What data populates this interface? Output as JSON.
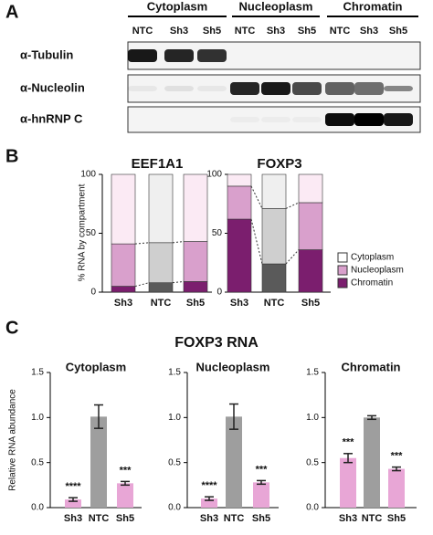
{
  "panel_a": {
    "label": "A",
    "groups": [
      "Cytoplasm",
      "Nucleoplasm",
      "Chromatin"
    ],
    "lanes": [
      "NTC",
      "Sh3",
      "Sh5",
      "NTC",
      "Sh3",
      "Sh5",
      "NTC",
      "Sh3",
      "Sh5"
    ],
    "rows": [
      "α-Tubulin",
      "α-Nucleolin",
      "α-hnRNP C"
    ]
  },
  "panel_b_label": "B",
  "panel_c_label": "C",
  "panel_c_title": "FOXP3 RNA",
  "chart_data": [
    {
      "type": "stacked_bar",
      "title": "EEF1A1",
      "y_label": "% RNA by compartment",
      "categories": [
        "Sh3",
        "NTC",
        "Sh5"
      ],
      "series": [
        {
          "color": "#7b1e6e",
          "point_colors": [
            "#7b1e6e",
            "#5a5a5a",
            "#7b1e6e"
          ],
          "values": [
            5,
            8,
            9
          ]
        },
        {
          "color": "#d9a0cc",
          "point_colors": [
            "#d9a0cc",
            "#cfcfcf",
            "#d9a0cc"
          ],
          "values": [
            36,
            34,
            34
          ]
        },
        {
          "color": "#fbeaf4",
          "point_colors": [
            "#fbeaf4",
            "#efefef",
            "#fbeaf4"
          ],
          "values": [
            59,
            58,
            57
          ]
        }
      ],
      "ylim": [
        0,
        100
      ],
      "yticks": [
        0,
        50,
        100
      ]
    },
    {
      "type": "stacked_bar",
      "title": "FOXP3",
      "categories": [
        "Sh3",
        "NTC",
        "Sh5"
      ],
      "series": [
        {
          "name": "Chromatin",
          "color": "#7b1e6e",
          "point_colors": [
            "#7b1e6e",
            "#5a5a5a",
            "#7b1e6e"
          ],
          "values": [
            62,
            24,
            36
          ]
        },
        {
          "name": "Nucleoplasm",
          "color": "#d9a0cc",
          "point_colors": [
            "#d9a0cc",
            "#cfcfcf",
            "#d9a0cc"
          ],
          "values": [
            28,
            47,
            40
          ]
        },
        {
          "name": "Cytoplasm",
          "color": "#ffffff",
          "point_colors": [
            "#fbeaf4",
            "#efefef",
            "#fbeaf4"
          ],
          "values": [
            10,
            29,
            24
          ]
        }
      ],
      "ylim": [
        0,
        100
      ],
      "yticks": [
        0,
        50,
        100
      ],
      "legend": "right"
    },
    {
      "type": "bar",
      "title": "Cytoplasm",
      "y_label": "Relative RNA abundance",
      "categories": [
        "Sh3",
        "NTC",
        "Sh5"
      ],
      "values": [
        0.09,
        1.01,
        0.27
      ],
      "errors": [
        0.02,
        0.13,
        0.02
      ],
      "colors": [
        "#e8a6d6",
        "#9e9e9e",
        "#e8a6d6"
      ],
      "significance": [
        "****",
        null,
        "***"
      ],
      "ylim": [
        0,
        1.5
      ],
      "yticks": [
        {
          "value": 0,
          "label": "0.0"
        },
        {
          "value": 0.5,
          "label": "0.5"
        },
        {
          "value": 1,
          "label": "1.0"
        },
        {
          "value": 1.5,
          "label": "1.5"
        }
      ]
    },
    {
      "type": "bar",
      "title": "Nucleoplasm",
      "categories": [
        "Sh3",
        "NTC",
        "Sh5"
      ],
      "values": [
        0.1,
        1.01,
        0.28
      ],
      "errors": [
        0.02,
        0.14,
        0.02
      ],
      "colors": [
        "#e8a6d6",
        "#9e9e9e",
        "#e8a6d6"
      ],
      "significance": [
        "****",
        null,
        "***"
      ],
      "ylim": [
        0,
        1.5
      ],
      "yticks": [
        {
          "value": 0,
          "label": "0.0"
        },
        {
          "value": 0.5,
          "label": "0.5"
        },
        {
          "value": 1,
          "label": "1.0"
        },
        {
          "value": 1.5,
          "label": "1.5"
        }
      ]
    },
    {
      "type": "bar",
      "title": "Chromatin",
      "categories": [
        "Sh3",
        "NTC",
        "Sh5"
      ],
      "values": [
        0.55,
        1.0,
        0.43
      ],
      "errors": [
        0.05,
        0.02,
        0.02
      ],
      "colors": [
        "#e8a6d6",
        "#9e9e9e",
        "#e8a6d6"
      ],
      "significance": [
        "***",
        null,
        "***"
      ],
      "ylim": [
        0,
        1.5
      ],
      "yticks": [
        {
          "value": 0,
          "label": "0.0"
        },
        {
          "value": 0.5,
          "label": "0.5"
        },
        {
          "value": 1,
          "label": "1.0"
        },
        {
          "value": 1.5,
          "label": "1.5"
        }
      ]
    }
  ]
}
